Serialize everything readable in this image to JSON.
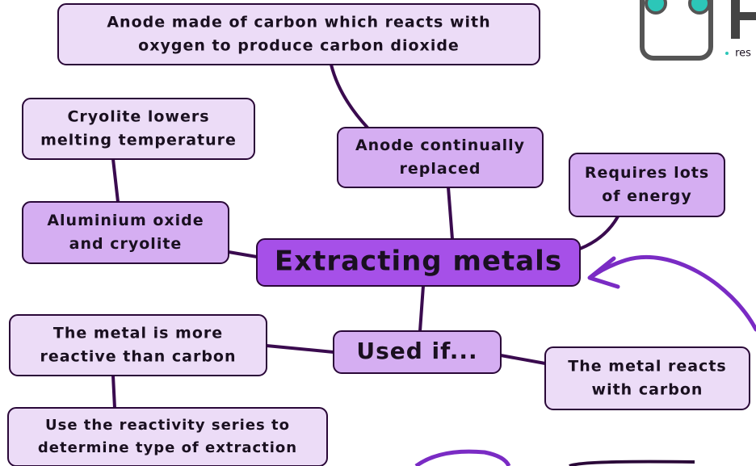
{
  "nodes": [
    {
      "lines": [
        "Anode made of carbon which reacts with",
        "oxygen to produce carbon dioxide"
      ]
    },
    {
      "lines": [
        "Cryolite lowers",
        "melting temperature"
      ]
    },
    {
      "lines": [
        "Anode continually",
        "replaced"
      ]
    },
    {
      "lines": [
        "Requires lots",
        "of energy"
      ]
    },
    {
      "lines": [
        "Aluminium oxide",
        "and cryolite"
      ]
    },
    {
      "lines": [
        "Extracting metals"
      ]
    },
    {
      "lines": [
        "The metal is more",
        "reactive than carbon"
      ]
    },
    {
      "lines": [
        "Used if..."
      ]
    },
    {
      "lines": [
        "The metal reacts",
        "with carbon"
      ]
    },
    {
      "lines": [
        "Use the reactivity series to",
        "determine type of extraction"
      ]
    }
  ],
  "logo": {
    "text": "res"
  }
}
